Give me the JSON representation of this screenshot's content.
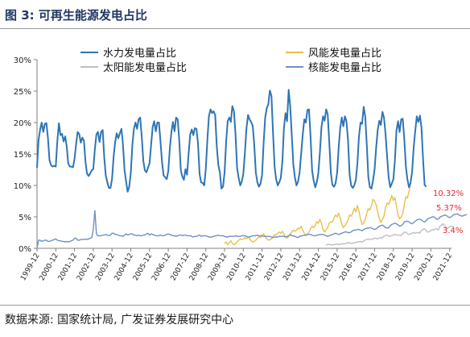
{
  "header": {
    "title": "图 3:  可再生能源发电占比"
  },
  "footer": {
    "source": "数据来源: 国家统计局, 广发证券发展研究中心"
  },
  "colors": {
    "hydro": "#2e75b6",
    "wind": "#e7c04a",
    "solar": "#bfbfbf",
    "nuclear": "#6f8fc8",
    "annotation": "#e8262e",
    "axis": "#7f7f7f"
  },
  "chart_data": {
    "type": "line",
    "xlabel": "",
    "ylabel": "",
    "ylim": [
      0,
      30
    ],
    "grid": false,
    "legend_position": "top",
    "y_ticks": [
      "0%",
      "5%",
      "10%",
      "15%",
      "20%",
      "25%",
      "30%"
    ],
    "x_ticks": [
      "1999-12",
      "2000-12",
      "2001-12",
      "2002-12",
      "2003-12",
      "2004-12",
      "2005-12",
      "2006-12",
      "2007-12",
      "2008-12",
      "2009-12",
      "2010-12",
      "2011-12",
      "2012-12",
      "2013-12",
      "2014-12",
      "2015-12",
      "2016-12",
      "2017-12",
      "2018-12",
      "2019-12",
      "2020-12",
      "2021-12"
    ],
    "series": [
      {
        "name": "水力发电量占比",
        "color_key": "hydro",
        "start": 1999.9,
        "step": 0.0833333,
        "values": [
          12.8,
          17.2,
          18.9,
          20.0,
          18.5,
          19.8,
          19.9,
          17.5,
          14.0,
          13.2,
          13.0,
          13.1,
          13.0,
          17.0,
          19.9,
          18.0,
          18.2,
          17.0,
          17.8,
          16.2,
          13.5,
          13.0,
          13.0,
          12.9,
          14.2,
          16.5,
          18.5,
          18.2,
          16.8,
          17.6,
          17.1,
          13.8,
          11.9,
          11.5,
          11.9,
          12.4,
          12.6,
          15.8,
          18.1,
          18.5,
          16.9,
          18.5,
          18.8,
          14.5,
          11.6,
          10.5,
          9.6,
          9.6,
          11.0,
          14.6,
          16.9,
          18.3,
          17.5,
          18.3,
          19.0,
          16.5,
          12.5,
          10.6,
          9.0,
          9.8,
          12.0,
          16.5,
          19.0,
          20.0,
          19.0,
          20.5,
          20.8,
          17.8,
          13.9,
          12.4,
          12.1,
          12.8,
          13.5,
          16.5,
          19.3,
          20.2,
          18.6,
          20.0,
          20.0,
          17.0,
          13.6,
          11.6,
          11.3,
          11.0,
          12.3,
          16.0,
          18.5,
          20.1,
          18.6,
          20.8,
          20.5,
          17.2,
          12.4,
          11.4,
          10.9,
          12.6,
          11.7,
          15.1,
          18.1,
          18.9,
          18.0,
          19.1,
          19.0,
          16.7,
          11.8,
          10.5,
          10.4,
          10.0,
          12.6,
          17.3,
          21.0,
          22.1,
          21.5,
          21.8,
          21.2,
          16.3,
          13.2,
          12.1,
          9.5,
          9.8,
          12.0,
          17.0,
          20.2,
          20.8,
          20.1,
          22.6,
          21.8,
          18.2,
          12.8,
          11.2,
          10.0,
          10.6,
          11.8,
          15.2,
          19.0,
          21.2,
          20.5,
          20.1,
          19.5,
          16.5,
          12.0,
          10.5,
          9.8,
          10.3,
          11.6,
          16.8,
          20.8,
          22.3,
          22.9,
          25.1,
          24.2,
          18.5,
          13.0,
          11.0,
          10.0,
          10.5,
          11.2,
          13.8,
          19.1,
          21.5,
          20.2,
          25.2,
          22.6,
          18.1,
          13.3,
          11.3,
          10.0,
          10.6,
          12.0,
          15.0,
          18.0,
          20.5,
          20.0,
          22.0,
          22.1,
          18.0,
          12.4,
          10.8,
          9.7,
          10.5,
          11.9,
          15.3,
          19.2,
          21.0,
          20.3,
          22.1,
          21.3,
          17.0,
          12.0,
          10.1,
          9.8,
          10.3,
          12.0,
          16.0,
          19.1,
          20.8,
          19.4,
          21.0,
          20.2,
          17.3,
          11.7,
          10.0,
          9.6,
          10.0,
          10.9,
          13.5,
          17.8,
          20.0,
          19.8,
          22.5,
          21.0,
          16.6,
          11.3,
          9.7,
          9.5,
          10.8,
          12.6,
          16.0,
          18.8,
          20.3,
          19.6,
          21.7,
          20.8,
          18.1,
          14.6,
          11.3,
          9.7,
          10.3,
          11.0,
          14.0,
          18.7,
          20.2,
          18.5,
          20.5,
          20.6,
          17.3,
          13.0,
          11.0,
          9.7,
          10.4,
          12.2,
          16.0,
          18.6,
          21.0,
          20.1,
          21.1,
          19.2,
          14.1,
          10.1,
          9.8
        ]
      },
      {
        "name": "风能发电量占比",
        "color_key": "wind",
        "start": 2009.9,
        "step": 0.0833333,
        "values": [
          0.8,
          1.0,
          0.6,
          0.9,
          1.2,
          0.8,
          0.6,
          0.7,
          1.0,
          1.3,
          1.5,
          1.4,
          1.4,
          1.7,
          1.5,
          1.8,
          1.6,
          1.2,
          1.0,
          1.1,
          1.3,
          1.6,
          1.9,
          1.7,
          2.0,
          2.3,
          1.9,
          1.5,
          1.3,
          1.4,
          1.5,
          1.8,
          2.2,
          2.1,
          2.4,
          2.6,
          2.4,
          2.7,
          2.3,
          1.8,
          1.6,
          1.9,
          2.2,
          2.6,
          2.9,
          2.7,
          2.9,
          3.2,
          3.1,
          3.5,
          2.9,
          2.4,
          2.0,
          2.3,
          2.5,
          3.1,
          3.5,
          3.3,
          3.6,
          4.2,
          4.0,
          4.6,
          4.0,
          3.0,
          2.6,
          3.0,
          3.3,
          4.0,
          4.2,
          4.2,
          4.8,
          5.3,
          5.0,
          5.6,
          4.9,
          3.9,
          3.3,
          3.6,
          4.0,
          4.5,
          5.3,
          5.1,
          5.6,
          6.4,
          5.8,
          6.8,
          5.9,
          4.6,
          3.8,
          4.0,
          4.5,
          5.6,
          6.3,
          6.1,
          6.8,
          7.8,
          7.5,
          6.9,
          5.8,
          4.7,
          4.1,
          4.6,
          5.1,
          6.5,
          7.2,
          7.0,
          7.6,
          8.4,
          7.6,
          8.1,
          6.7,
          5.3,
          4.7,
          5.0,
          5.5,
          7.0,
          8.2,
          8.0,
          9.0,
          10.32
        ]
      },
      {
        "name": "太阳能发电量占比",
        "color_key": "solar",
        "start": 2015.3,
        "step": 0.0833333,
        "values": [
          0.5,
          0.6,
          0.6,
          0.6,
          0.5,
          0.6,
          0.6,
          0.7,
          0.6,
          0.6,
          0.7,
          0.7,
          0.7,
          0.8,
          0.9,
          0.9,
          0.8,
          0.8,
          0.9,
          0.9,
          1.0,
          1.0,
          1.1,
          1.0,
          1.1,
          1.3,
          1.4,
          1.5,
          1.4,
          1.4,
          1.5,
          1.6,
          1.6,
          1.5,
          1.6,
          1.7,
          1.6,
          1.9,
          2.0,
          2.1,
          2.0,
          1.9,
          2.0,
          2.1,
          2.2,
          2.1,
          2.1,
          2.1,
          2.0,
          2.3,
          2.5,
          2.6,
          2.4,
          2.2,
          2.3,
          2.4,
          2.5,
          2.4,
          2.5,
          2.5,
          2.4,
          2.8,
          3.0,
          3.1,
          2.9,
          2.6,
          2.6,
          2.8,
          3.0,
          2.9,
          3.1,
          3.1,
          2.9,
          3.5,
          3.7,
          3.9,
          3.6,
          3.3,
          3.2,
          3.4,
          3.5,
          3.5,
          3.4
        ]
      },
      {
        "name": "核能发电量占比",
        "color_key": "nuclear",
        "start": 1999.9,
        "step": 0.0833333,
        "values": [
          0.0,
          1.3,
          1.3,
          1.1,
          1.2,
          1.3,
          1.3,
          1.1,
          1.1,
          1.2,
          1.3,
          1.4,
          1.5,
          1.3,
          1.2,
          1.2,
          1.1,
          1.1,
          1.0,
          1.1,
          1.0,
          1.1,
          1.2,
          1.3,
          1.6,
          1.6,
          1.3,
          1.3,
          1.4,
          1.4,
          1.4,
          1.5,
          1.4,
          1.5,
          1.6,
          1.7,
          3.0,
          6.0,
          2.3,
          2.0,
          2.0,
          2.0,
          2.1,
          2.1,
          2.2,
          2.1,
          2.0,
          2.1,
          2.4,
          2.4,
          2.2,
          2.2,
          2.1,
          2.0,
          2.0,
          1.9,
          2.1,
          2.3,
          2.1,
          2.2,
          2.3,
          2.3,
          2.1,
          2.1,
          2.0,
          2.1,
          2.0,
          2.0,
          2.1,
          2.1,
          2.3,
          2.4,
          2.1,
          2.3,
          2.2,
          2.1,
          2.0,
          2.0,
          2.0,
          2.1,
          2.0,
          2.0,
          2.1,
          2.2,
          2.3,
          2.2,
          2.1,
          2.0,
          2.0,
          1.9,
          2.0,
          2.1,
          2.1,
          2.0,
          2.1,
          2.1,
          2.0,
          2.0,
          2.0,
          1.9,
          1.8,
          1.9,
          1.9,
          2.0,
          2.1,
          1.9,
          2.0,
          2.0,
          2.0,
          1.9,
          1.8,
          1.8,
          1.8,
          1.9,
          2.0,
          2.0,
          2.1,
          2.0,
          2.0,
          2.0,
          1.9,
          1.8,
          1.8,
          1.9,
          1.9,
          1.9,
          1.9,
          2.0,
          1.9,
          1.9,
          1.9,
          2.0,
          2.0,
          2.0,
          1.9,
          1.8,
          1.8,
          1.9,
          2.0,
          2.0,
          2.0,
          2.1,
          2.0,
          2.0,
          2.0,
          1.9,
          1.9,
          1.9,
          1.9,
          1.9,
          1.8,
          1.7,
          1.8,
          1.8,
          1.8,
          1.9,
          1.9,
          1.9,
          1.9,
          1.8,
          1.9,
          2.0,
          2.2,
          2.0,
          2.0,
          1.9,
          1.8,
          1.7,
          1.9,
          2.0,
          2.0,
          2.1,
          2.1,
          2.2,
          2.2,
          2.2,
          2.1,
          2.0,
          2.0,
          2.1,
          2.1,
          2.2,
          2.2,
          2.2,
          2.1,
          2.0,
          1.9,
          2.0,
          2.1,
          2.2,
          2.3,
          2.4,
          2.3,
          2.2,
          2.3,
          2.4,
          2.5,
          2.6,
          2.6,
          2.5,
          2.5,
          2.6,
          2.8,
          2.9,
          2.9,
          3.0,
          3.0,
          2.9,
          2.8,
          3.0,
          3.1,
          3.2,
          3.2,
          3.3,
          3.2,
          3.1,
          3.0,
          3.1,
          3.3,
          3.5,
          3.6,
          3.7,
          3.5,
          3.3,
          3.2,
          3.3,
          3.6,
          3.8,
          3.9,
          4.0,
          3.9,
          3.7,
          3.5,
          3.6,
          3.8,
          4.2,
          4.3,
          4.3,
          4.2,
          4.0,
          3.9,
          4.1,
          4.3,
          4.5,
          4.6,
          4.6,
          4.5,
          4.3,
          4.2,
          4.4,
          4.7,
          4.8,
          4.9,
          5.0,
          5.0,
          4.8,
          4.6,
          4.7,
          5.0,
          5.1,
          5.2,
          5.3,
          5.2,
          5.0,
          4.9,
          5.0,
          5.2,
          5.4,
          5.4,
          5.5,
          5.3,
          5.2,
          5.1,
          5.2,
          5.3,
          5.37
        ]
      }
    ],
    "annotations": [
      {
        "text": "10.32%",
        "value": 10.32
      },
      {
        "text": "5.37%",
        "value": 5.37
      },
      {
        "text": "3.4%",
        "value": 3.4
      }
    ]
  }
}
